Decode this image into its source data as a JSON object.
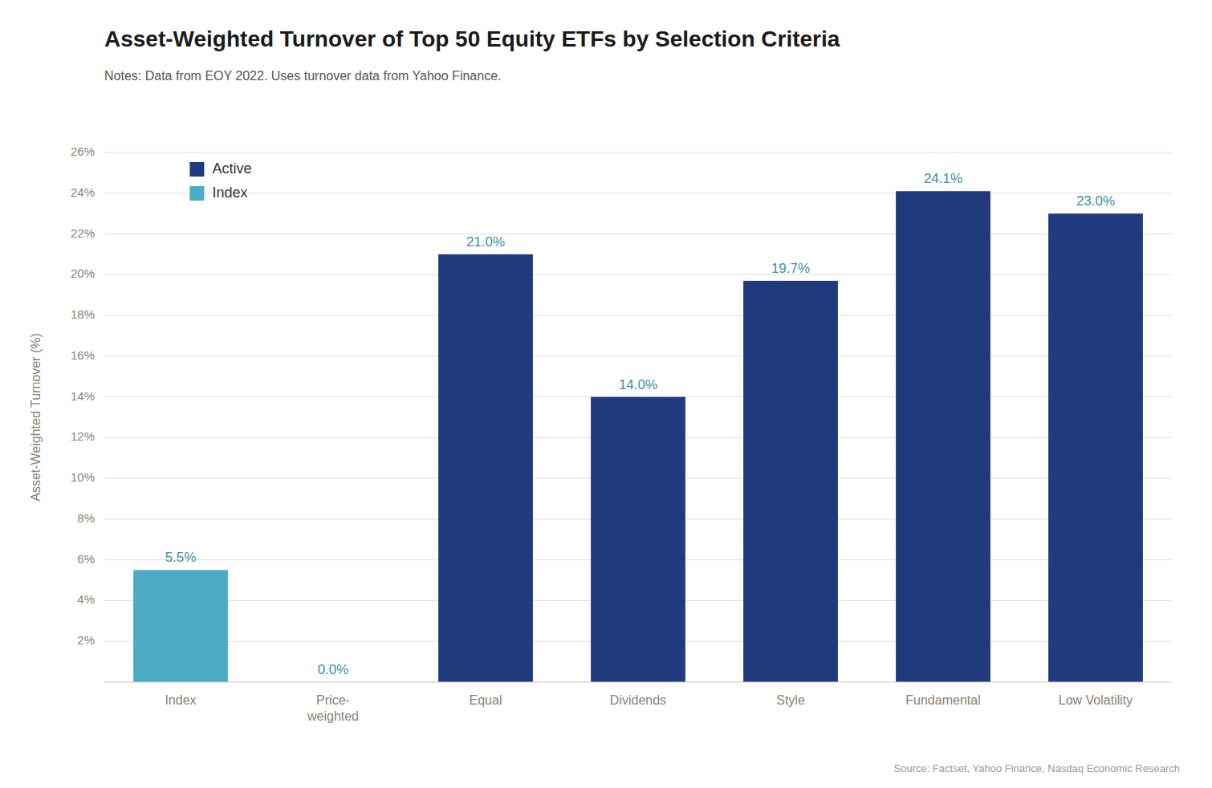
{
  "chart_data": {
    "type": "bar",
    "title": "Asset-Weighted Turnover of Top 50 Equity ETFs by Selection Criteria",
    "subtitle": "Notes: Data from EOY 2022. Uses turnover data from Yahoo Finance.",
    "annotations": [
      "Source: Factset, Yahoo Finance, Nasdaq Economic Research"
    ],
    "y_label": "Asset-Weighted Turnover (%)",
    "categories": [
      "Index",
      "Price-\nweighted",
      "Equal",
      "Dividends",
      "Style",
      "Fundamental",
      "Low Volatility"
    ],
    "series": [
      {
        "name": "Active",
        "color": "#1f3a7d",
        "values": [
          null,
          null,
          21.0,
          14.0,
          19.7,
          24.1,
          23.0
        ],
        "value_labels": [
          null,
          null,
          "21.0%",
          "14.0%",
          "19.7%",
          "24.1%",
          "23.0%"
        ]
      },
      {
        "name": "Index",
        "color": "#4bacc6",
        "values": [
          5.5,
          0.0,
          null,
          null,
          null,
          null,
          null
        ],
        "value_labels": [
          "5.5%",
          "0.0%",
          null,
          null,
          null,
          null,
          null
        ]
      }
    ],
    "stacked": true,
    "ylim": [
      0,
      26
    ],
    "yticks": [
      {
        "value": 2,
        "label": "2%"
      },
      {
        "value": 4,
        "label": "4%"
      },
      {
        "value": 6,
        "label": "6%"
      },
      {
        "value": 8,
        "label": "8%"
      },
      {
        "value": 10,
        "label": "10%"
      },
      {
        "value": 12,
        "label": "12%"
      },
      {
        "value": 14,
        "label": "14%"
      },
      {
        "value": 16,
        "label": "16%"
      },
      {
        "value": 18,
        "label": "18%"
      },
      {
        "value": 20,
        "label": "20%"
      },
      {
        "value": 22,
        "label": "22%"
      },
      {
        "value": 24,
        "label": "24%"
      },
      {
        "value": 26,
        "label": "26%"
      }
    ],
    "grid": true,
    "legend": "upper left",
    "data_labels": true
  }
}
